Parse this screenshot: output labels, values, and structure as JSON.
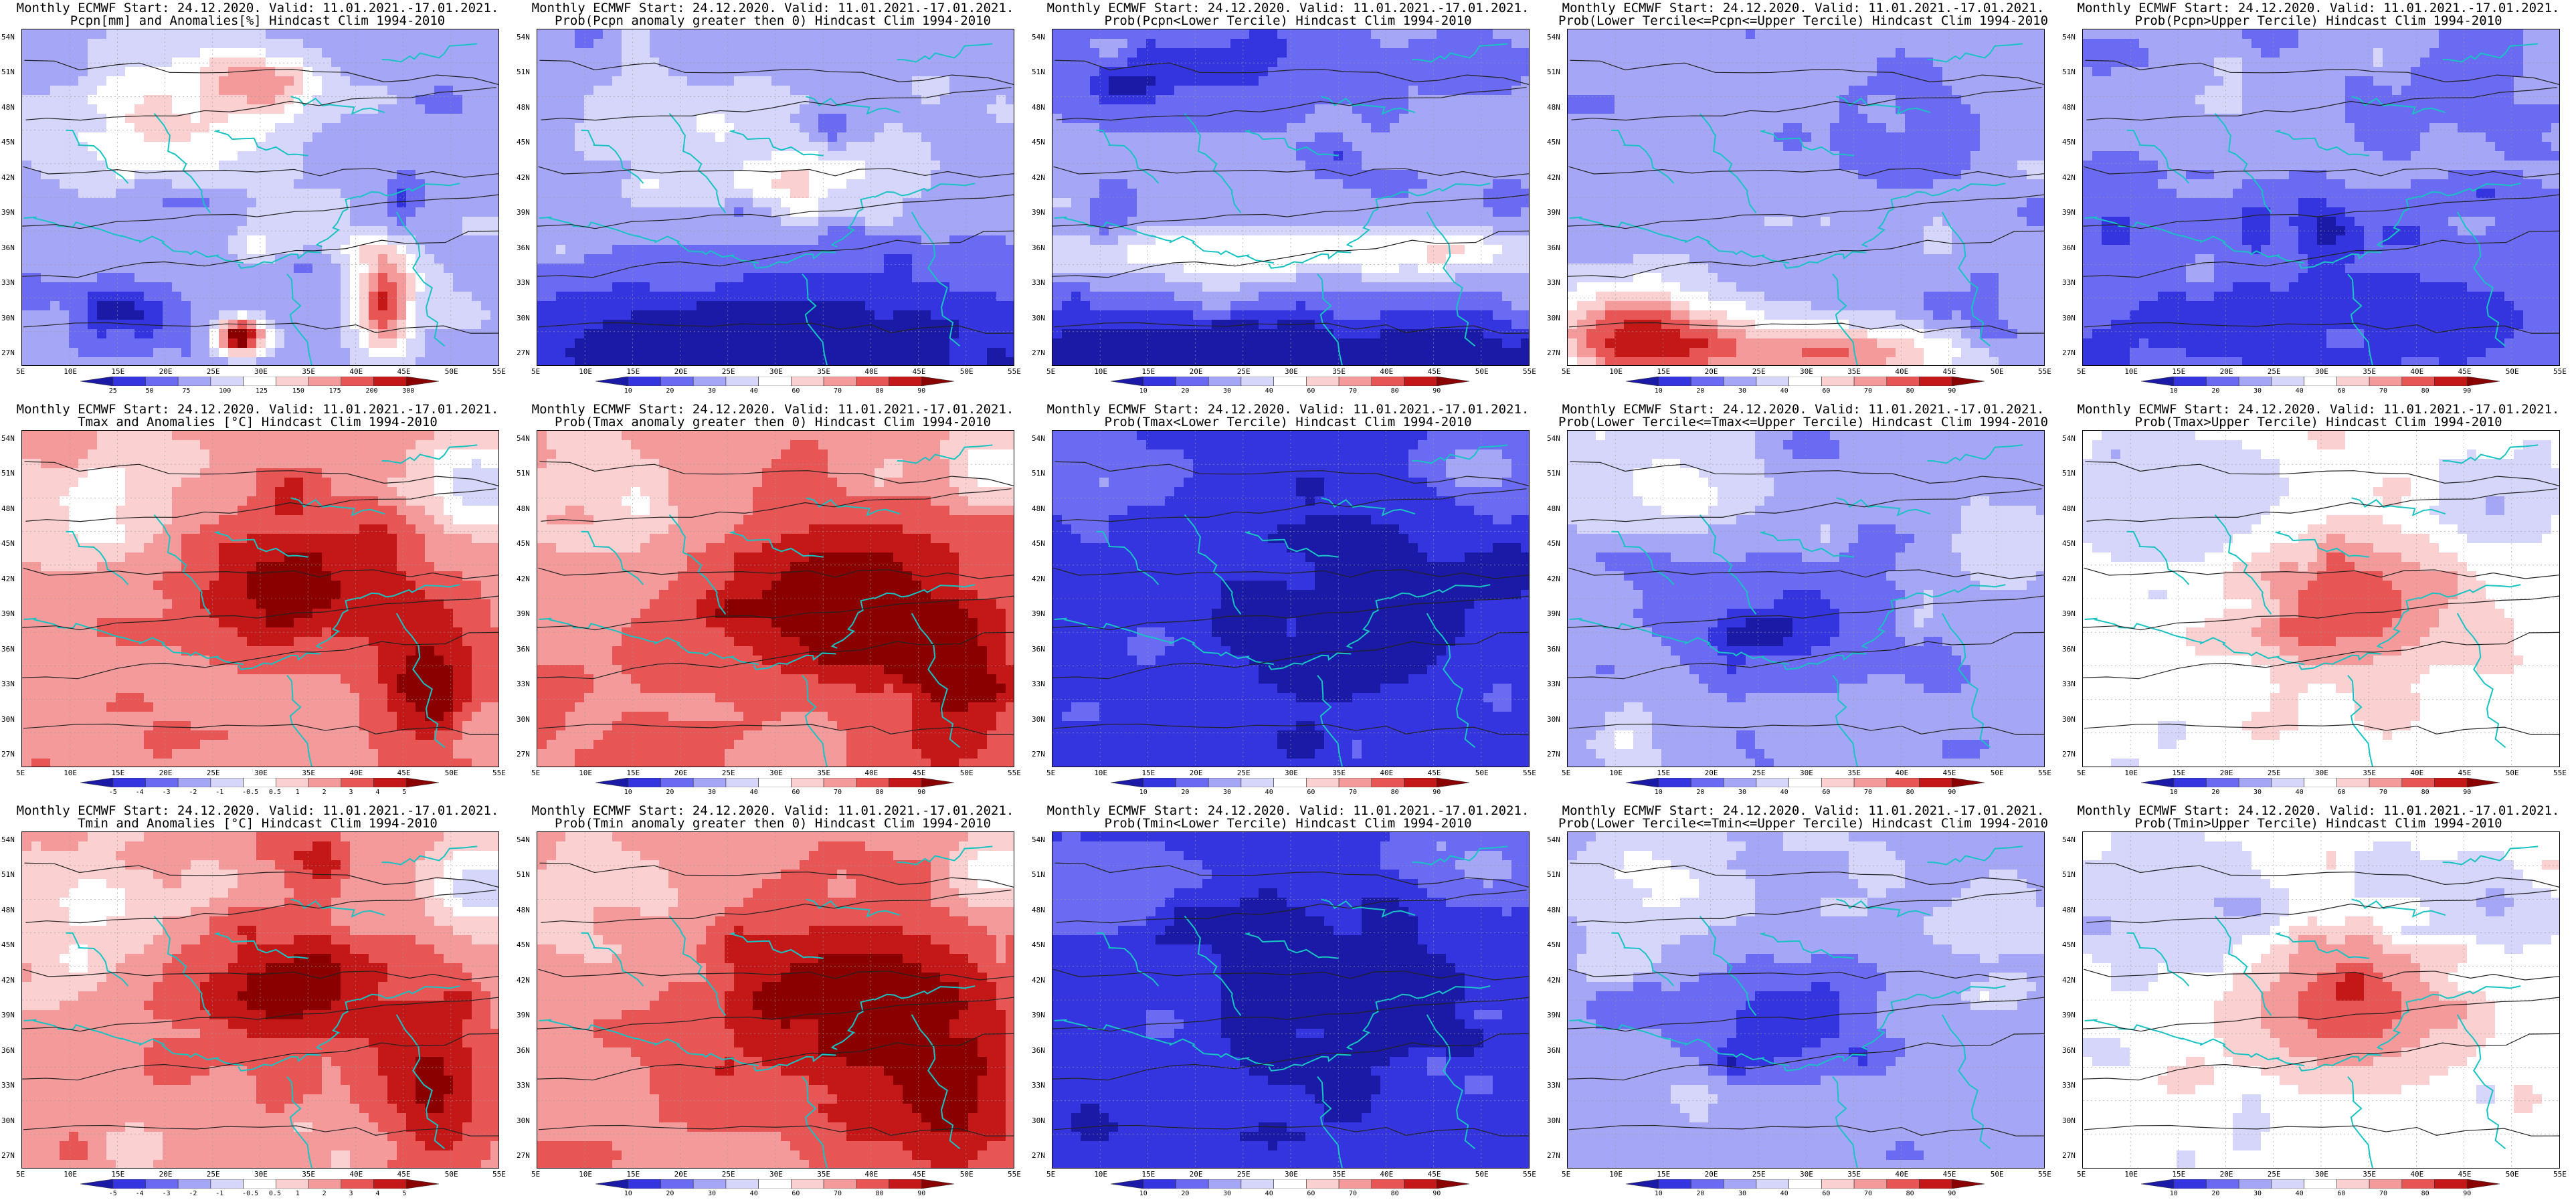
{
  "panels": [
    {
      "id": "r1c1",
      "title1": "Monthly ECMWF Start: 24.12.2020. Valid: 11.01.2021.-17.01.2021.",
      "title2": "Pcpn[mm] and Anomalies[%] Hindcast Clim 1994-2010",
      "scale": "anom_pcpn",
      "pattern": "mixed_bluewhite",
      "ticks": [
        "25",
        "50",
        "75",
        "100",
        "125",
        "150",
        "175",
        "200",
        "300"
      ]
    },
    {
      "id": "r1c2",
      "title1": "Monthly ECMWF Start: 24.12.2020. Valid: 11.01.2021.-17.01.2021.",
      "title2": "Prob(Pcpn anomaly greater then 0) Hindcast Clim 1994-2010",
      "scale": "prob",
      "pattern": "blue_south",
      "ticks": [
        "10",
        "20",
        "30",
        "40",
        "60",
        "70",
        "80",
        "90"
      ]
    },
    {
      "id": "r1c3",
      "title1": "Monthly ECMWF Start: 24.12.2020. Valid: 11.01.2021.-17.01.2021.",
      "title2": "Prob(Pcpn<Lower Tercile) Hindcast Clim 1994-2010",
      "scale": "prob",
      "pattern": "blue_north_darksouth",
      "ticks": [
        "10",
        "20",
        "30",
        "40",
        "60",
        "70",
        "80",
        "90"
      ]
    },
    {
      "id": "r1c4",
      "title1": "Monthly ECMWF Start: 24.12.2020. Valid: 11.01.2021.-17.01.2021.",
      "title2": "Prob(Lower Tercile<=Pcpn<=Upper Tercile) Hindcast Clim 1994-2010",
      "scale": "prob",
      "pattern": "blue_red_south",
      "ticks": [
        "10",
        "20",
        "30",
        "40",
        "60",
        "70",
        "80",
        "90"
      ]
    },
    {
      "id": "r1c5",
      "title1": "Monthly ECMWF Start: 24.12.2020. Valid: 11.01.2021.-17.01.2021.",
      "title2": "Prob(Pcpn>Upper Tercile) Hindcast Clim 1994-2010",
      "scale": "prob",
      "pattern": "blue_mid",
      "ticks": [
        "10",
        "20",
        "30",
        "40",
        "60",
        "70",
        "80",
        "90"
      ]
    },
    {
      "id": "r2c1",
      "title1": "Monthly ECMWF Start: 24.12.2020. Valid: 11.01.2021.-17.01.2021.",
      "title2": "Tmax and Anomalies [°C] Hindcast Clim 1994-2010",
      "scale": "anom_temp",
      "pattern": "red_east",
      "ticks": [
        "-5",
        "-4",
        "-3",
        "-2",
        "-1",
        "-0.5",
        "0.5",
        "1",
        "2",
        "3",
        "4",
        "5"
      ]
    },
    {
      "id": "r2c2",
      "title1": "Monthly ECMWF Start: 24.12.2020. Valid: 11.01.2021.-17.01.2021.",
      "title2": "Prob(Tmax anomaly greater then 0) Hindcast Clim 1994-2010",
      "scale": "prob",
      "pattern": "red_east_strong",
      "ticks": [
        "10",
        "20",
        "30",
        "40",
        "60",
        "70",
        "80",
        "90"
      ]
    },
    {
      "id": "r2c3",
      "title1": "Monthly ECMWF Start: 24.12.2020. Valid: 11.01.2021.-17.01.2021.",
      "title2": "Prob(Tmax<Lower Tercile) Hindcast Clim 1994-2010",
      "scale": "prob",
      "pattern": "blue_strong",
      "ticks": [
        "10",
        "20",
        "30",
        "40",
        "60",
        "70",
        "80",
        "90"
      ]
    },
    {
      "id": "r2c4",
      "title1": "Monthly ECMWF Start: 24.12.2020. Valid: 11.01.2021.-17.01.2021.",
      "title2": "Prob(Lower Tercile<=Tmax<=Upper Tercile) Hindcast Clim 1994-2010",
      "scale": "prob",
      "pattern": "blue_medium",
      "ticks": [
        "10",
        "20",
        "30",
        "40",
        "60",
        "70",
        "80",
        "90"
      ]
    },
    {
      "id": "r2c5",
      "title1": "Monthly ECMWF Start: 24.12.2020. Valid: 11.01.2021.-17.01.2021.",
      "title2": "Prob(Tmax>Upper Tercile) Hindcast Clim 1994-2010",
      "scale": "prob",
      "pattern": "red_center_light",
      "ticks": [
        "10",
        "20",
        "30",
        "40",
        "60",
        "70",
        "80",
        "90"
      ]
    },
    {
      "id": "r3c1",
      "title1": "Monthly ECMWF Start: 24.12.2020. Valid: 11.01.2021.-17.01.2021.",
      "title2": "Tmin and Anomalies [°C] Hindcast Clim 1994-2010",
      "scale": "anom_temp",
      "pattern": "red_east",
      "ticks": [
        "-5",
        "-4",
        "-3",
        "-2",
        "-1",
        "-0.5",
        "0.5",
        "1",
        "2",
        "3",
        "4",
        "5"
      ]
    },
    {
      "id": "r3c2",
      "title1": "Monthly ECMWF Start: 24.12.2020. Valid: 11.01.2021.-17.01.2021.",
      "title2": "Prob(Tmin anomaly greater then 0) Hindcast Clim 1994-2010",
      "scale": "prob",
      "pattern": "red_east_strong",
      "ticks": [
        "10",
        "20",
        "30",
        "40",
        "60",
        "70",
        "80",
        "90"
      ]
    },
    {
      "id": "r3c3",
      "title1": "Monthly ECMWF Start: 24.12.2020. Valid: 11.01.2021.-17.01.2021.",
      "title2": "Prob(Tmin<Lower Tercile) Hindcast Clim 1994-2010",
      "scale": "prob",
      "pattern": "blue_strong",
      "ticks": [
        "10",
        "20",
        "30",
        "40",
        "60",
        "70",
        "80",
        "90"
      ]
    },
    {
      "id": "r3c4",
      "title1": "Monthly ECMWF Start: 24.12.2020. Valid: 11.01.2021.-17.01.2021.",
      "title2": "Prob(Lower Tercile<=Tmin<=Upper Tercile) Hindcast Clim 1994-2010",
      "scale": "prob",
      "pattern": "blue_medium",
      "ticks": [
        "10",
        "20",
        "30",
        "40",
        "60",
        "70",
        "80",
        "90"
      ]
    },
    {
      "id": "r3c5",
      "title1": "Monthly ECMWF Start: 24.12.2020. Valid: 11.01.2021.-17.01.2021.",
      "title2": "Prob(Tmin>Upper Tercile) Hindcast Clim 1994-2010",
      "scale": "prob",
      "pattern": "red_center_light",
      "ticks": [
        "10",
        "20",
        "30",
        "40",
        "60",
        "70",
        "80",
        "90"
      ]
    }
  ],
  "axes": {
    "lat_labels": [
      "54N",
      "51N",
      "48N",
      "45N",
      "42N",
      "39N",
      "36N",
      "33N",
      "30N",
      "27N"
    ],
    "lon_labels": [
      "5E",
      "10E",
      "15E",
      "20E",
      "25E",
      "30E",
      "35E",
      "40E",
      "45E",
      "50E",
      "55E"
    ]
  },
  "colors": {
    "prob_scale": [
      "#1a1aa6",
      "#3535e0",
      "#6a6af2",
      "#a6a6f7",
      "#d6d6fb",
      "#ffffff",
      "#fbd0d0",
      "#f49a9a",
      "#e85555",
      "#c41818",
      "#8a0000"
    ],
    "anom_scale": [
      "#1a1aa6",
      "#3535e0",
      "#6a6af2",
      "#a6a6f7",
      "#d6d6fb",
      "#ffffff",
      "#fbd0d0",
      "#f49a9a",
      "#e85555",
      "#c41818",
      "#8a0000"
    ],
    "coastline": "#19c3c3",
    "contour": "#222222"
  }
}
